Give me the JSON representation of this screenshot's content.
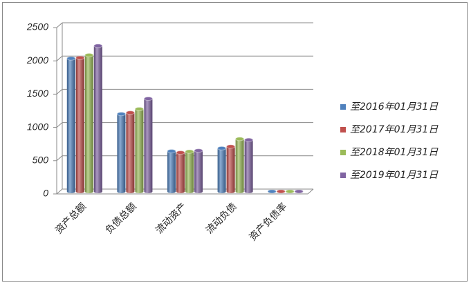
{
  "chart_data": {
    "type": "bar",
    "categories": [
      "资产总额",
      "负债总额",
      "流动资产",
      "流动负债",
      "资产负债率"
    ],
    "series": [
      {
        "name": "至2016年01月31日",
        "color": "#4f81bd",
        "values": [
          2000,
          1165,
          605,
          650,
          0.6
        ]
      },
      {
        "name": "至2017年01月31日",
        "color": "#c0504d",
        "values": [
          2010,
          1185,
          585,
          675,
          0.6
        ]
      },
      {
        "name": "至2018年01月31日",
        "color": "#9bbb59",
        "values": [
          2050,
          1240,
          600,
          790,
          0.6
        ]
      },
      {
        "name": "至2019年01月31日",
        "color": "#8064a2",
        "values": [
          2190,
          1395,
          615,
          775,
          0.6
        ]
      }
    ],
    "ylim": [
      0,
      2500
    ],
    "yticks": [
      0,
      500,
      1000,
      1500,
      2000,
      2500
    ],
    "grid": true,
    "legend": "right"
  }
}
